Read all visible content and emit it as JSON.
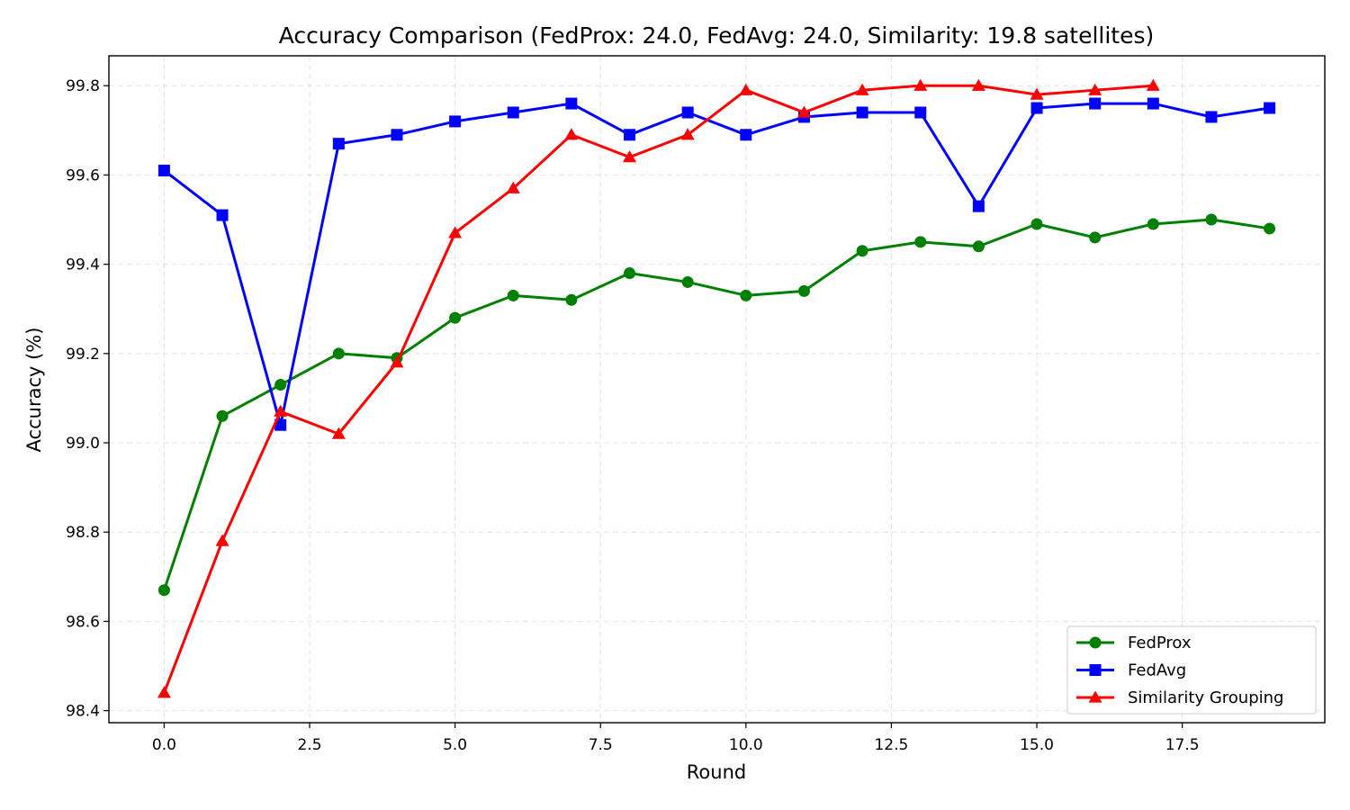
{
  "chart_data": {
    "type": "line",
    "title": "Accuracy Comparison (FedProx: 24.0, FedAvg: 24.0, Similarity: 19.8 satellites)",
    "xlabel": "Round",
    "ylabel": "Accuracy (%)",
    "xlim": [
      -0.95,
      19.95
    ],
    "ylim": [
      98.373,
      99.867
    ],
    "xticks": [
      0.0,
      2.5,
      5.0,
      7.5,
      10.0,
      12.5,
      15.0,
      17.5
    ],
    "xtick_labels": [
      "0.0",
      "2.5",
      "5.0",
      "7.5",
      "10.0",
      "12.5",
      "15.0",
      "17.5"
    ],
    "yticks": [
      98.4,
      98.6,
      98.8,
      99.0,
      99.2,
      99.4,
      99.6,
      99.8
    ],
    "ytick_labels": [
      "98.4",
      "98.6",
      "98.8",
      "99.0",
      "99.2",
      "99.4",
      "99.6",
      "99.8"
    ],
    "grid": true,
    "legend_position": "lower-right",
    "series": [
      {
        "name": "FedProx",
        "color": "#008000",
        "marker": "circle",
        "x": [
          0,
          1,
          2,
          3,
          4,
          5,
          6,
          7,
          8,
          9,
          10,
          11,
          12,
          13,
          14,
          15,
          16,
          17,
          18,
          19
        ],
        "y": [
          98.67,
          99.06,
          99.13,
          99.2,
          99.19,
          99.28,
          99.33,
          99.32,
          99.38,
          99.36,
          99.33,
          99.34,
          99.43,
          99.45,
          99.44,
          99.49,
          99.46,
          99.49,
          99.5,
          99.48
        ]
      },
      {
        "name": "FedAvg",
        "color": "#0000ff",
        "marker": "square",
        "x": [
          0,
          1,
          2,
          3,
          4,
          5,
          6,
          7,
          8,
          9,
          10,
          11,
          12,
          13,
          14,
          15,
          16,
          17,
          18,
          19
        ],
        "y": [
          99.61,
          99.51,
          99.04,
          99.67,
          99.69,
          99.72,
          99.74,
          99.76,
          99.69,
          99.74,
          99.69,
          99.73,
          99.74,
          99.74,
          99.53,
          99.75,
          99.76,
          99.76,
          99.73,
          99.75
        ]
      },
      {
        "name": "Similarity Grouping",
        "color": "#ff0000",
        "marker": "triangle",
        "x": [
          0,
          1,
          2,
          3,
          4,
          5,
          6,
          7,
          8,
          9,
          10,
          11,
          12,
          13,
          14,
          15,
          16,
          17
        ],
        "y": [
          98.44,
          98.78,
          99.07,
          99.02,
          99.18,
          99.47,
          99.57,
          99.69,
          99.64,
          99.69,
          99.79,
          99.74,
          99.79,
          99.8,
          99.8,
          99.78,
          99.79,
          99.8
        ]
      }
    ]
  }
}
